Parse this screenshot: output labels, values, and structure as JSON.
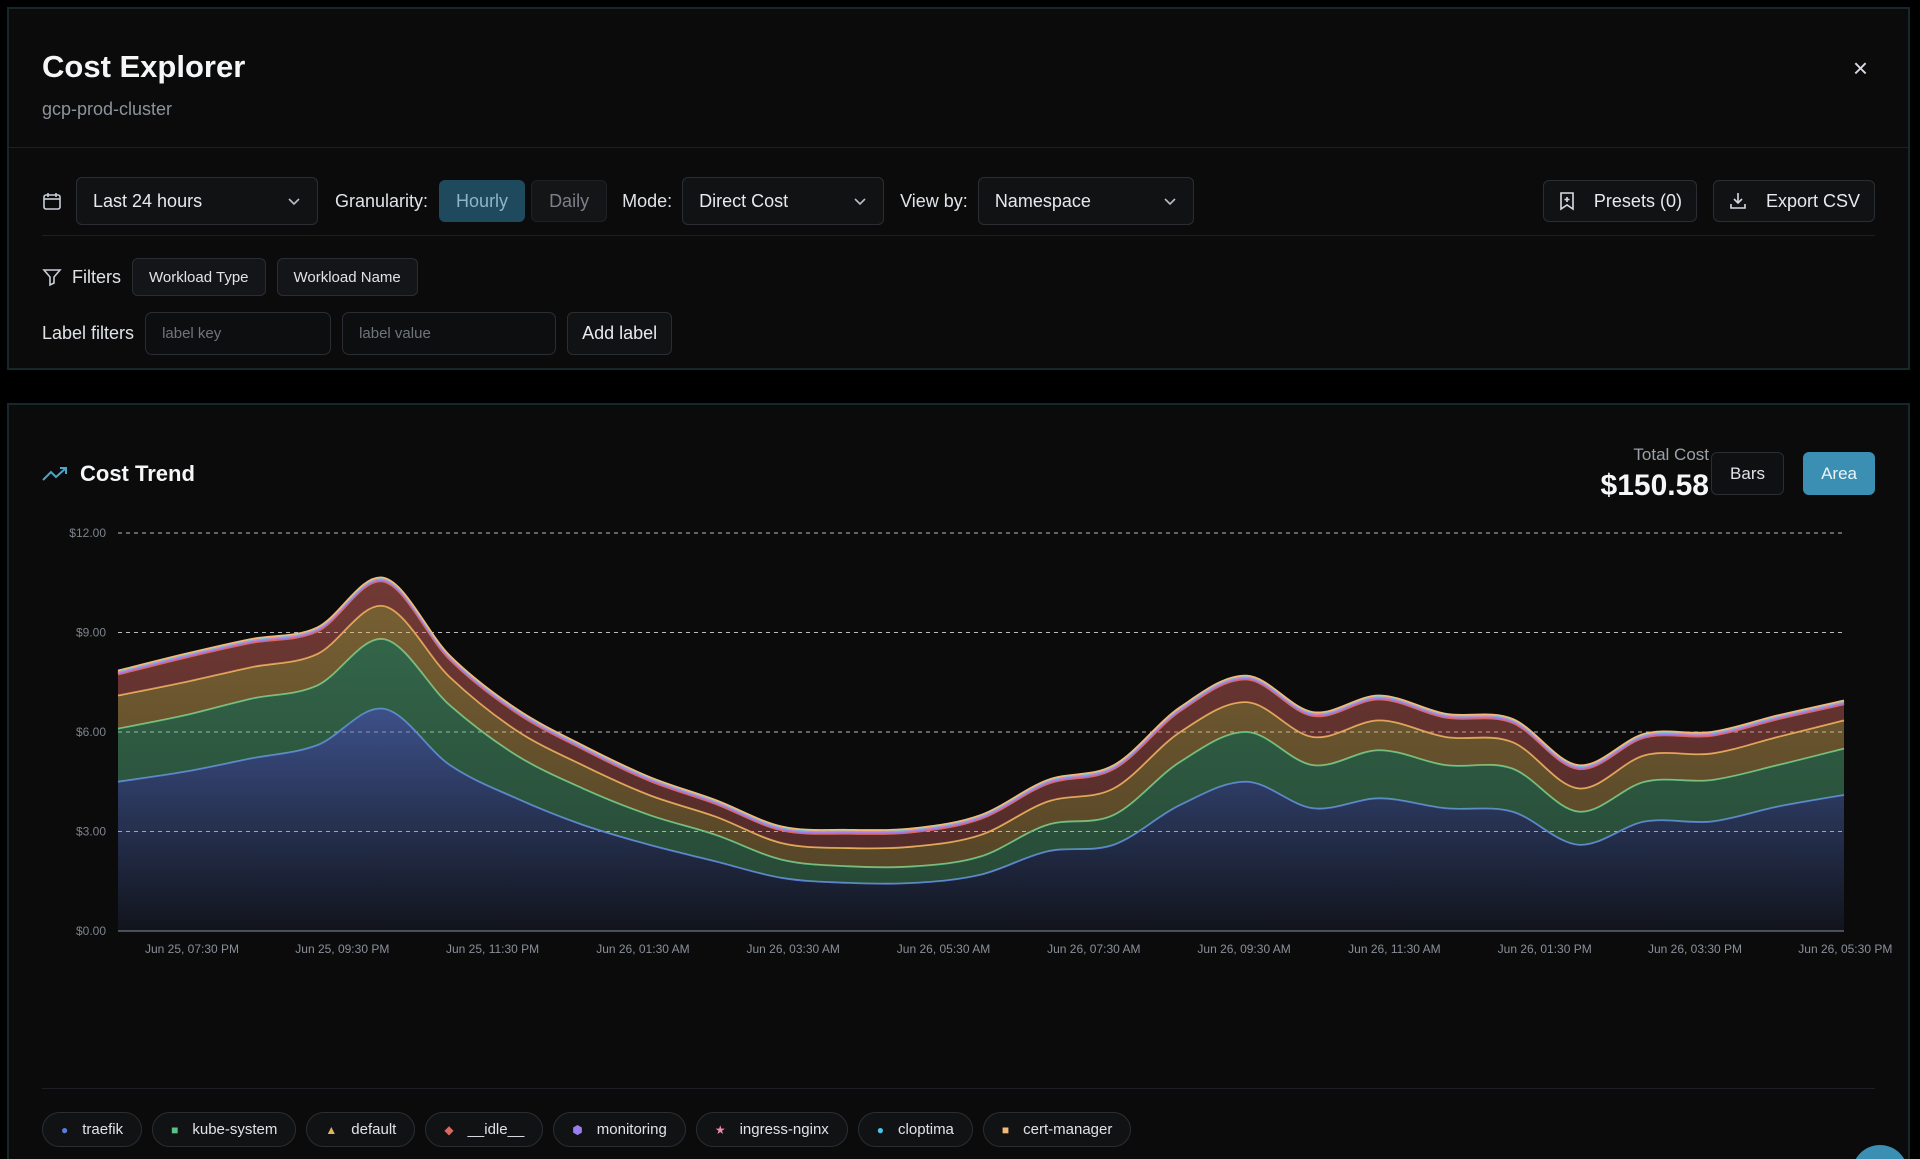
{
  "header": {
    "title": "Cost Explorer",
    "subtitle": "gcp-prod-cluster",
    "close_symbol": "×"
  },
  "toolbar": {
    "time_range": "Last 24 hours",
    "granularity_label": "Granularity:",
    "granularity_options": [
      "Hourly",
      "Daily"
    ],
    "granularity_selected": "Hourly",
    "mode_label": "Mode:",
    "mode_value": "Direct Cost",
    "view_by_label": "View by:",
    "view_by_value": "Namespace",
    "presets_label": "Presets (0)",
    "export_label": "Export CSV"
  },
  "filters": {
    "label": "Filters",
    "chips": [
      "Workload Type",
      "Workload Name"
    ]
  },
  "label_filters": {
    "label": "Label filters",
    "key_placeholder": "label key",
    "value_placeholder": "label value",
    "add_label": "Add label"
  },
  "trend": {
    "title": "Cost Trend",
    "total_label": "Total Cost",
    "total_value": "$150.58",
    "view_options": [
      "Bars",
      "Area"
    ],
    "view_selected": "Area"
  },
  "chart_data": {
    "type": "area",
    "stacked": true,
    "grid": true,
    "ylim": [
      0,
      12
    ],
    "y_ticks": [
      "$0.00",
      "$3.00",
      "$6.00",
      "$9.00",
      "$12.00"
    ],
    "x_tick_labels": [
      "Jun 25, 07:30 PM",
      "Jun 25, 09:30 PM",
      "Jun 25, 11:30 PM",
      "Jun 26, 01:30 AM",
      "Jun 26, 03:30 AM",
      "Jun 26, 05:30 AM",
      "Jun 26, 07:30 AM",
      "Jun 26, 09:30 AM",
      "Jun 26, 11:30 AM",
      "Jun 26, 01:30 PM",
      "Jun 26, 03:30 PM",
      "Jun 26, 05:30 PM"
    ],
    "series": [
      {
        "name": "traefik",
        "color": "#5b7bd6",
        "values": [
          4.5,
          4.8,
          5.2,
          5.6,
          6.7,
          5.0,
          4.0,
          3.2,
          2.6,
          2.1,
          1.6,
          1.45,
          1.45,
          1.7,
          2.4,
          2.6,
          3.8,
          4.5,
          3.7,
          4.0,
          3.7,
          3.6,
          2.6,
          3.3,
          3.3,
          3.75,
          4.1
        ]
      },
      {
        "name": "kube-system",
        "color": "#5bbf86",
        "values": [
          1.6,
          1.7,
          1.8,
          1.8,
          2.1,
          1.8,
          1.3,
          1.1,
          0.9,
          0.8,
          0.55,
          0.5,
          0.5,
          0.55,
          0.8,
          0.9,
          1.3,
          1.5,
          1.3,
          1.45,
          1.3,
          1.3,
          1.0,
          1.2,
          1.25,
          1.25,
          1.4
        ]
      },
      {
        "name": "default",
        "color": "#e2b35a",
        "values": [
          1.0,
          1.0,
          0.95,
          0.95,
          1.0,
          0.85,
          0.75,
          0.7,
          0.6,
          0.55,
          0.5,
          0.55,
          0.6,
          0.65,
          0.7,
          0.8,
          0.9,
          0.9,
          0.85,
          0.9,
          0.85,
          0.8,
          0.7,
          0.8,
          0.8,
          0.85,
          0.85
        ]
      },
      {
        "name": "__idle__",
        "color": "#d9685e",
        "values": [
          0.65,
          0.75,
          0.75,
          0.7,
          0.75,
          0.55,
          0.55,
          0.5,
          0.45,
          0.4,
          0.4,
          0.45,
          0.45,
          0.5,
          0.55,
          0.6,
          0.65,
          0.7,
          0.65,
          0.65,
          0.6,
          0.6,
          0.6,
          0.55,
          0.55,
          0.55,
          0.5
        ]
      },
      {
        "name": "monitoring",
        "color": "#9a7cf0",
        "values": [
          0.02,
          0.02,
          0.02,
          0.02,
          0.02,
          0.02,
          0.02,
          0.02,
          0.02,
          0.02,
          0.02,
          0.02,
          0.02,
          0.02,
          0.02,
          0.02,
          0.02,
          0.02,
          0.02,
          0.02,
          0.02,
          0.02,
          0.02,
          0.02,
          0.02,
          0.02,
          0.02
        ]
      },
      {
        "name": "ingress-nginx",
        "color": "#f08aa8",
        "values": [
          0.05,
          0.05,
          0.05,
          0.05,
          0.05,
          0.05,
          0.05,
          0.05,
          0.05,
          0.05,
          0.05,
          0.05,
          0.05,
          0.05,
          0.05,
          0.05,
          0.05,
          0.05,
          0.05,
          0.05,
          0.05,
          0.05,
          0.05,
          0.05,
          0.05,
          0.05,
          0.05
        ]
      },
      {
        "name": "cloptima",
        "color": "#4cc3ea",
        "values": [
          0.01,
          0.01,
          0.01,
          0.01,
          0.01,
          0.01,
          0.01,
          0.01,
          0.01,
          0.01,
          0.01,
          0.01,
          0.01,
          0.01,
          0.01,
          0.01,
          0.01,
          0.01,
          0.01,
          0.01,
          0.01,
          0.01,
          0.01,
          0.01,
          0.01,
          0.01,
          0.01
        ]
      },
      {
        "name": "cert-manager",
        "color": "#f2b97a",
        "values": [
          0.02,
          0.02,
          0.02,
          0.02,
          0.02,
          0.02,
          0.02,
          0.02,
          0.02,
          0.02,
          0.02,
          0.02,
          0.02,
          0.02,
          0.02,
          0.02,
          0.02,
          0.02,
          0.02,
          0.02,
          0.02,
          0.02,
          0.02,
          0.02,
          0.02,
          0.02,
          0.02
        ]
      }
    ]
  },
  "legend": [
    {
      "name": "traefik",
      "marker": "●",
      "color": "#5b7bd6"
    },
    {
      "name": "kube-system",
      "marker": "■",
      "color": "#5bbf86"
    },
    {
      "name": "default",
      "marker": "▲",
      "color": "#e2b35a"
    },
    {
      "name": "__idle__",
      "marker": "◆",
      "color": "#d9685e"
    },
    {
      "name": "monitoring",
      "marker": "⬢",
      "color": "#9a7cf0"
    },
    {
      "name": "ingress-nginx",
      "marker": "★",
      "color": "#f08aa8"
    },
    {
      "name": "cloptima",
      "marker": "●",
      "color": "#4cc3ea"
    },
    {
      "name": "cert-manager",
      "marker": "■",
      "color": "#f2b97a"
    }
  ]
}
